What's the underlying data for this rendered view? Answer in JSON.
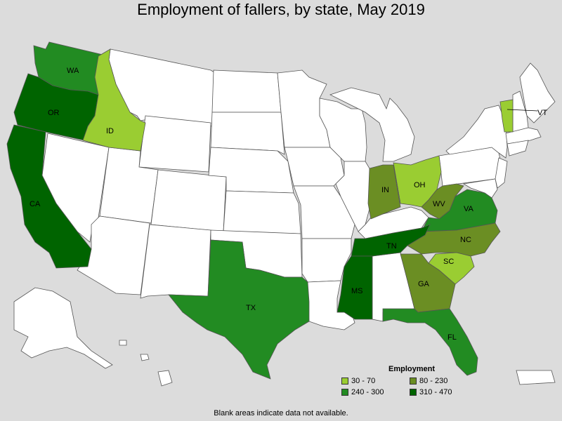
{
  "title": "Employment of fallers, by state, May 2019",
  "footnote": "Blank areas indicate data not available.",
  "legend": {
    "title": "Employment",
    "items": [
      {
        "label": "30 - 70",
        "color": "#9acd32"
      },
      {
        "label": "80 - 230",
        "color": "#6b8e23"
      },
      {
        "label": "240 - 300",
        "color": "#228b22"
      },
      {
        "label": "310 - 470",
        "color": "#006400"
      }
    ]
  },
  "colors": {
    "blank": "#ffffff",
    "unavailable": "#dcdcdc",
    "background": "#dcdcdc",
    "border": "#555555"
  },
  "states": [
    {
      "abbr": "WA",
      "category": "240 - 300"
    },
    {
      "abbr": "OR",
      "category": "310 - 470"
    },
    {
      "abbr": "CA",
      "category": "310 - 470"
    },
    {
      "abbr": "ID",
      "category": "30 - 70"
    },
    {
      "abbr": "TX",
      "category": "240 - 300"
    },
    {
      "abbr": "IN",
      "category": "80 - 230"
    },
    {
      "abbr": "OH",
      "category": "30 - 70"
    },
    {
      "abbr": "WV",
      "category": "80 - 230"
    },
    {
      "abbr": "VA",
      "category": "240 - 300"
    },
    {
      "abbr": "NC",
      "category": "80 - 230"
    },
    {
      "abbr": "SC",
      "category": "30 - 70"
    },
    {
      "abbr": "GA",
      "category": "80 - 230"
    },
    {
      "abbr": "FL",
      "category": "240 - 300"
    },
    {
      "abbr": "TN",
      "category": "310 - 470"
    },
    {
      "abbr": "MS",
      "category": "310 - 470"
    },
    {
      "abbr": "VT",
      "category": "30 - 70"
    }
  ]
}
